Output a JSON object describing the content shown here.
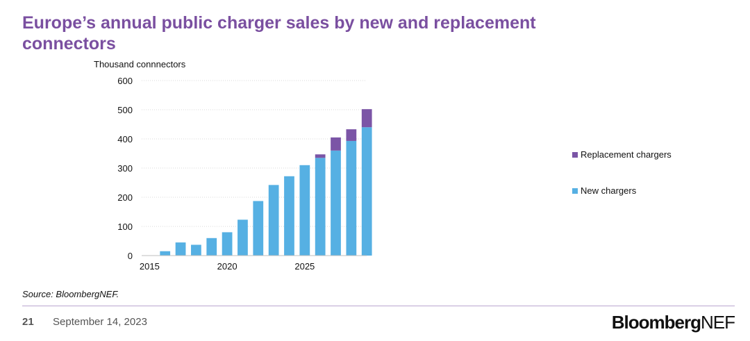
{
  "title": "Europe’s annual public charger sales by new and replacement connectors",
  "footer": {
    "source": "Source: BloombergNEF.",
    "page_number": "21",
    "date": "September 14, 2023",
    "logo_bold": "Bloomberg",
    "logo_regular": "NEF"
  },
  "colors": {
    "new": "#56b0e3",
    "replacement": "#7b55a6",
    "title": "#7a4fa0"
  },
  "chart_data": {
    "type": "bar",
    "stacked": true,
    "ylabel": "Thousand connnectors",
    "ylim": [
      0,
      600
    ],
    "yticks": [
      0,
      100,
      200,
      300,
      400,
      500,
      600
    ],
    "xticks": [
      2015,
      2020,
      2025
    ],
    "categories": [
      2015,
      2016,
      2017,
      2018,
      2019,
      2020,
      2021,
      2022,
      2023,
      2024,
      2025,
      2026,
      2027,
      2028,
      2029
    ],
    "series": [
      {
        "name": "New chargers",
        "color": "#56b0e3",
        "values": [
          0,
          15,
          45,
          37,
          60,
          80,
          123,
          187,
          242,
          272,
          310,
          335,
          360,
          393,
          440
        ]
      },
      {
        "name": "Replacement chargers",
        "color": "#7b55a6",
        "values": [
          0,
          0,
          0,
          0,
          0,
          0,
          0,
          0,
          0,
          0,
          0,
          12,
          45,
          40,
          62
        ]
      }
    ],
    "grid": true,
    "legend_position": "right"
  }
}
